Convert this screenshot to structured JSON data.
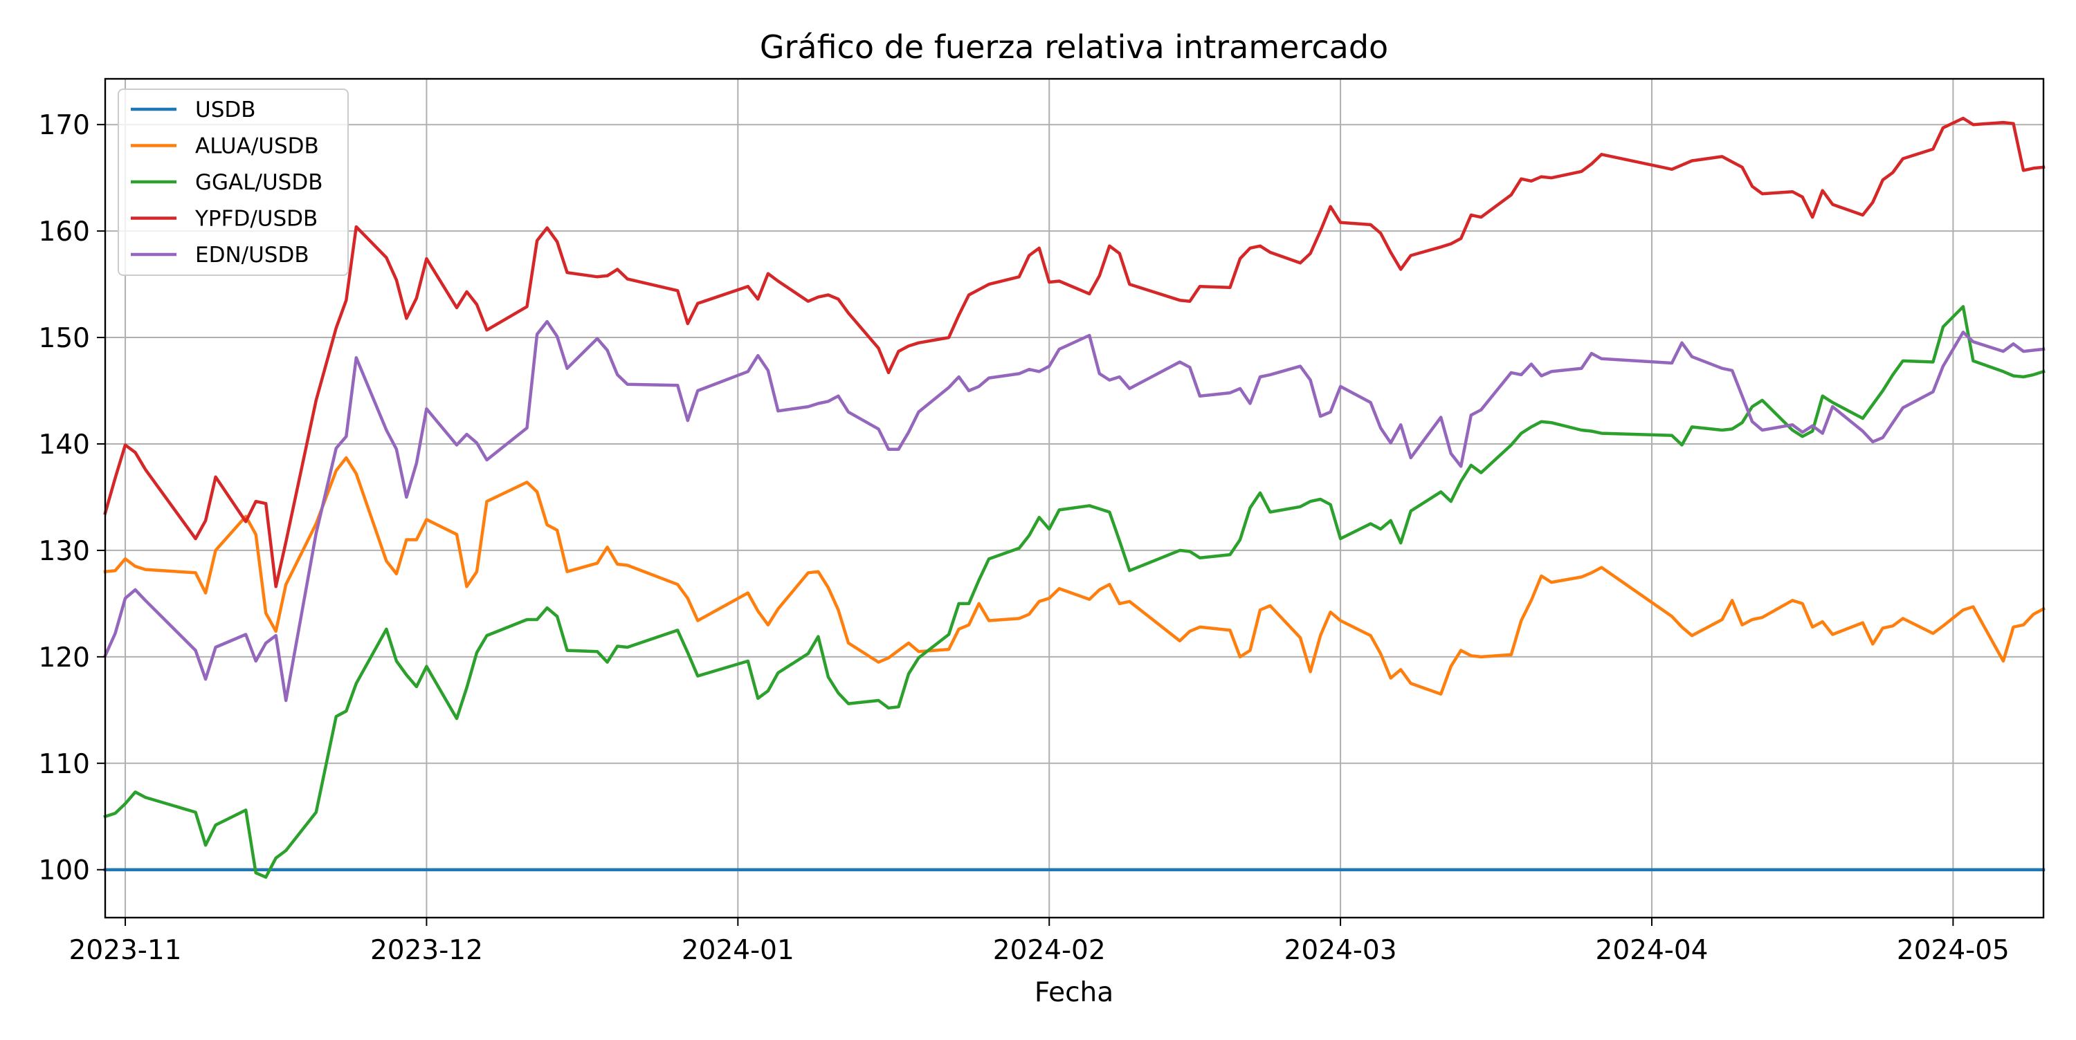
{
  "chart_data": {
    "type": "line",
    "title": "Gráfico de fuerza relativa intramercado",
    "xlabel": "Fecha",
    "ylabel": "",
    "xlim": [
      "2023-10-30",
      "2024-05-10"
    ],
    "ylim": [
      95.5,
      174.3
    ],
    "xticks": [
      "2023-11",
      "2023-12",
      "2024-01",
      "2024-02",
      "2024-03",
      "2024-04",
      "2024-05"
    ],
    "yticks": [
      100,
      110,
      120,
      130,
      140,
      150,
      160,
      170
    ],
    "grid": true,
    "legend_position": "upper-left",
    "x": [
      "2023-10-30",
      "2023-10-31",
      "2023-11-01",
      "2023-11-02",
      "2023-11-03",
      "2023-11-08",
      "2023-11-09",
      "2023-11-10",
      "2023-11-13",
      "2023-11-14",
      "2023-11-15",
      "2023-11-16",
      "2023-11-17",
      "2023-11-20",
      "2023-11-22",
      "2023-11-23",
      "2023-11-24",
      "2023-11-27",
      "2023-11-28",
      "2023-11-29",
      "2023-11-30",
      "2023-12-01",
      "2023-12-04",
      "2023-12-05",
      "2023-12-06",
      "2023-12-07",
      "2023-12-11",
      "2023-12-12",
      "2023-12-13",
      "2023-12-14",
      "2023-12-15",
      "2023-12-18",
      "2023-12-19",
      "2023-12-20",
      "2023-12-21",
      "2023-12-26",
      "2023-12-27",
      "2023-12-28",
      "2024-01-02",
      "2024-01-03",
      "2024-01-04",
      "2024-01-05",
      "2024-01-08",
      "2024-01-09",
      "2024-01-10",
      "2024-01-11",
      "2024-01-12",
      "2024-01-15",
      "2024-01-16",
      "2024-01-17",
      "2024-01-18",
      "2024-01-19",
      "2024-01-22",
      "2024-01-23",
      "2024-01-24",
      "2024-01-25",
      "2024-01-26",
      "2024-01-29",
      "2024-01-30",
      "2024-01-31",
      "2024-02-01",
      "2024-02-02",
      "2024-02-05",
      "2024-02-06",
      "2024-02-07",
      "2024-02-08",
      "2024-02-09",
      "2024-02-14",
      "2024-02-15",
      "2024-02-16",
      "2024-02-19",
      "2024-02-20",
      "2024-02-21",
      "2024-02-22",
      "2024-02-23",
      "2024-02-26",
      "2024-02-27",
      "2024-02-28",
      "2024-02-29",
      "2024-03-01",
      "2024-03-04",
      "2024-03-05",
      "2024-03-06",
      "2024-03-07",
      "2024-03-08",
      "2024-03-11",
      "2024-03-12",
      "2024-03-13",
      "2024-03-14",
      "2024-03-15",
      "2024-03-18",
      "2024-03-19",
      "2024-03-20",
      "2024-03-21",
      "2024-03-22",
      "2024-03-25",
      "2024-03-26",
      "2024-03-27",
      "2024-04-03",
      "2024-04-04",
      "2024-04-05",
      "2024-04-08",
      "2024-04-09",
      "2024-04-10",
      "2024-04-11",
      "2024-04-12",
      "2024-04-15",
      "2024-04-16",
      "2024-04-17",
      "2024-04-18",
      "2024-04-19",
      "2024-04-22",
      "2024-04-23",
      "2024-04-24",
      "2024-04-25",
      "2024-04-26",
      "2024-04-29",
      "2024-04-30",
      "2024-05-02",
      "2024-05-03",
      "2024-05-06",
      "2024-05-07",
      "2024-05-08",
      "2024-05-09",
      "2024-05-10"
    ],
    "series": [
      {
        "name": "USDB",
        "color": "#1f77b4",
        "values": [
          100,
          100,
          100,
          100,
          100,
          100,
          100,
          100,
          100,
          100,
          100,
          100,
          100,
          100,
          100,
          100,
          100,
          100,
          100,
          100,
          100,
          100,
          100,
          100,
          100,
          100,
          100,
          100,
          100,
          100,
          100,
          100,
          100,
          100,
          100,
          100,
          100,
          100,
          100,
          100,
          100,
          100,
          100,
          100,
          100,
          100,
          100,
          100,
          100,
          100,
          100,
          100,
          100,
          100,
          100,
          100,
          100,
          100,
          100,
          100,
          100,
          100,
          100,
          100,
          100,
          100,
          100,
          100,
          100,
          100,
          100,
          100,
          100,
          100,
          100,
          100,
          100,
          100,
          100,
          100,
          100,
          100,
          100,
          100,
          100,
          100,
          100,
          100,
          100,
          100,
          100,
          100,
          100,
          100,
          100,
          100,
          100,
          100,
          100,
          100,
          100,
          100,
          100,
          100,
          100,
          100,
          100,
          100,
          100,
          100,
          100,
          100,
          100,
          100,
          100,
          100,
          100,
          100,
          100,
          100,
          100,
          100,
          100,
          100,
          100
        ]
      },
      {
        "name": "ALUA/USDB",
        "color": "#ff7f0e",
        "values": [
          128.0,
          128.1,
          129.2,
          128.5,
          128.2,
          127.9,
          126.0,
          130.0,
          133.2,
          131.5,
          124.1,
          122.4,
          126.8,
          132.5,
          137.5,
          138.7,
          137.2,
          129.0,
          127.8,
          131.0,
          131.0,
          132.9,
          131.5,
          126.6,
          128.0,
          134.6,
          136.4,
          135.5,
          132.4,
          131.9,
          128.0,
          128.8,
          130.3,
          128.7,
          128.6,
          126.8,
          125.5,
          123.4,
          126.0,
          124.3,
          123.0,
          124.5,
          127.9,
          128.0,
          126.5,
          124.4,
          121.3,
          119.5,
          119.9,
          120.6,
          121.3,
          120.5,
          120.7,
          122.6,
          123.0,
          125.0,
          123.4,
          123.6,
          124.0,
          125.2,
          125.5,
          126.4,
          125.4,
          126.3,
          126.8,
          125.0,
          125.2,
          121.5,
          122.4,
          122.8,
          122.5,
          120.0,
          120.6,
          124.4,
          124.8,
          121.8,
          118.6,
          122.0,
          124.2,
          123.4,
          122.0,
          120.3,
          118.0,
          118.8,
          117.5,
          116.5,
          119.1,
          120.6,
          120.1,
          120.0,
          120.2,
          123.4,
          125.3,
          127.6,
          127.0,
          127.5,
          127.9,
          128.4,
          123.8,
          122.8,
          122.0,
          123.5,
          125.3,
          123.0,
          123.5,
          123.7,
          125.3,
          125.0,
          122.8,
          123.3,
          122.1,
          123.2,
          121.2,
          122.7,
          122.9,
          123.6,
          122.2,
          122.9,
          124.4,
          124.7,
          119.6,
          122.8,
          123.0,
          124.0,
          124.5
        ]
      },
      {
        "name": "GGAL/USDB",
        "color": "#2ca02c",
        "values": [
          105.0,
          105.3,
          106.2,
          107.3,
          106.8,
          105.4,
          102.3,
          104.2,
          105.6,
          99.7,
          99.3,
          101.1,
          101.8,
          105.4,
          114.4,
          114.9,
          117.5,
          122.6,
          119.6,
          118.3,
          117.2,
          119.1,
          114.2,
          117.1,
          120.4,
          122.0,
          123.5,
          123.5,
          124.6,
          123.8,
          120.6,
          120.5,
          119.5,
          121.0,
          120.9,
          122.5,
          120.4,
          118.2,
          119.6,
          116.1,
          116.8,
          118.5,
          120.3,
          121.9,
          118.1,
          116.6,
          115.6,
          115.9,
          115.2,
          115.3,
          118.4,
          119.9,
          122.1,
          125.0,
          125.0,
          127.2,
          129.2,
          130.2,
          131.4,
          133.1,
          132.0,
          133.8,
          134.2,
          133.9,
          133.6,
          130.9,
          128.1,
          130.0,
          129.9,
          129.3,
          129.6,
          131.0,
          134.0,
          135.4,
          133.6,
          134.1,
          134.6,
          134.8,
          134.3,
          131.1,
          132.5,
          132.0,
          132.8,
          130.7,
          133.7,
          135.5,
          134.6,
          136.5,
          138.0,
          137.3,
          139.9,
          141.0,
          141.6,
          142.1,
          142.0,
          141.3,
          141.2,
          141.0,
          140.8,
          139.9,
          141.6,
          141.3,
          141.4,
          142.0,
          143.5,
          144.1,
          141.3,
          140.7,
          141.2,
          144.5,
          143.9,
          142.4,
          143.7,
          145.0,
          146.5,
          147.8,
          147.7,
          151.0,
          152.9,
          147.8,
          146.8,
          146.4,
          146.3,
          146.5,
          146.8
        ]
      },
      {
        "name": "YPFD/USDB",
        "color": "#d62728",
        "values": [
          133.5,
          136.8,
          139.9,
          139.2,
          137.6,
          131.1,
          132.8,
          136.9,
          132.7,
          134.6,
          134.4,
          126.6,
          130.8,
          144.1,
          150.9,
          153.5,
          160.4,
          157.5,
          155.4,
          151.8,
          153.7,
          157.4,
          152.8,
          154.3,
          153.1,
          150.7,
          152.9,
          159.1,
          160.3,
          159.0,
          156.1,
          155.7,
          155.8,
          156.4,
          155.5,
          154.4,
          151.3,
          153.2,
          154.8,
          153.6,
          156.0,
          155.3,
          153.4,
          153.8,
          154.0,
          153.6,
          152.3,
          149.0,
          146.7,
          148.7,
          149.2,
          149.5,
          150.0,
          152.1,
          154.0,
          154.5,
          155.0,
          155.7,
          157.7,
          158.4,
          155.2,
          155.3,
          154.1,
          155.8,
          158.6,
          157.9,
          155.0,
          153.5,
          153.4,
          154.8,
          154.7,
          157.4,
          158.4,
          158.6,
          158.0,
          157.0,
          157.9,
          160.0,
          162.3,
          160.8,
          160.6,
          159.8,
          158.0,
          156.4,
          157.7,
          158.5,
          158.8,
          159.3,
          161.5,
          161.3,
          163.4,
          164.9,
          164.7,
          165.1,
          165.0,
          165.6,
          166.3,
          167.2,
          165.8,
          166.2,
          166.6,
          167.0,
          166.5,
          166.0,
          164.2,
          163.5,
          163.7,
          163.2,
          161.3,
          163.8,
          162.5,
          161.5,
          162.7,
          164.8,
          165.5,
          166.8,
          167.7,
          169.7,
          170.6,
          170.0,
          170.2,
          170.1,
          165.7,
          165.9,
          166.0
        ]
      },
      {
        "name": "EDN/USDB",
        "color": "#9467bd",
        "values": [
          120.1,
          122.2,
          125.5,
          126.3,
          125.3,
          120.6,
          117.9,
          120.9,
          122.1,
          119.6,
          121.3,
          122.0,
          115.9,
          131.6,
          139.6,
          140.7,
          148.1,
          141.3,
          139.5,
          135.0,
          138.2,
          143.3,
          139.9,
          140.9,
          140.1,
          138.5,
          141.5,
          150.3,
          151.5,
          150.1,
          147.1,
          149.9,
          148.8,
          146.5,
          145.6,
          145.5,
          142.2,
          145.0,
          146.8,
          148.3,
          146.9,
          143.1,
          143.5,
          143.8,
          144.0,
          144.5,
          143.0,
          141.4,
          139.5,
          139.5,
          141.1,
          143.0,
          145.3,
          146.3,
          145.0,
          145.4,
          146.2,
          146.6,
          147.0,
          146.8,
          147.3,
          148.9,
          150.2,
          146.6,
          146.0,
          146.3,
          145.2,
          147.7,
          147.2,
          144.5,
          144.8,
          145.2,
          143.8,
          146.3,
          146.5,
          147.3,
          146.0,
          142.6,
          143.0,
          145.4,
          143.9,
          141.5,
          140.1,
          141.8,
          138.7,
          142.5,
          139.1,
          137.9,
          142.7,
          143.2,
          146.7,
          146.5,
          147.5,
          146.4,
          146.8,
          147.1,
          148.5,
          148.0,
          147.6,
          149.5,
          148.2,
          147.1,
          146.9,
          144.5,
          142.1,
          141.3,
          141.8,
          141.1,
          141.7,
          141.0,
          143.5,
          141.2,
          140.2,
          140.6,
          142.0,
          143.4,
          144.9,
          147.3,
          150.5,
          149.6,
          148.7,
          149.4,
          148.7,
          148.8,
          148.9
        ]
      }
    ]
  }
}
